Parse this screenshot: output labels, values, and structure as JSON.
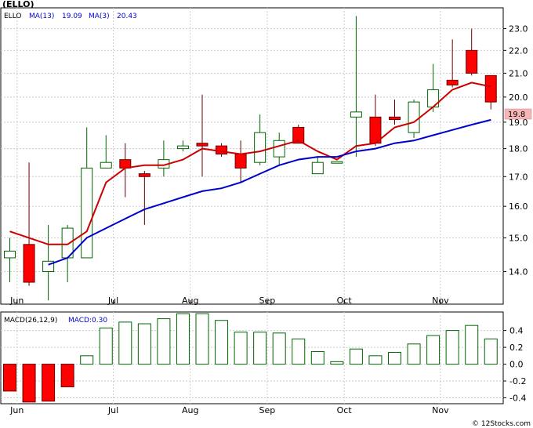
{
  "chart_data": [
    {
      "type": "candlestick",
      "title": "(ELLO)",
      "legend": [
        {
          "label": "ELLO",
          "color": "#000000"
        },
        {
          "label": "MA(13)",
          "value": "19.09",
          "color": "#0000cc"
        },
        {
          "label": "MA(3)",
          "value": "20.43",
          "color": "#0000cc"
        }
      ],
      "last_price_label": "19.8",
      "xtick_labels": [
        "Jun",
        "Jul",
        "Aug",
        "Sep",
        "Oct",
        "Nov"
      ],
      "ytick_labels": [
        "14.0",
        "15.0",
        "16.0",
        "17.0",
        "18.0",
        "19.0",
        "20.0",
        "21.0",
        "22.0",
        "23.0"
      ],
      "y_log_scale": true,
      "ylim": [
        13.1,
        24.0
      ],
      "grid": true,
      "bar_colors": {
        "up": "#006600",
        "down": "#ff0000"
      },
      "ma_colors": {
        "ma13": "#0000cc",
        "ma3": "#cc0000"
      },
      "weeks": [
        {
          "open": 14.4,
          "high": 15.0,
          "low": 13.7,
          "close": 14.6
        },
        {
          "open": 14.8,
          "high": 17.5,
          "low": 13.6,
          "close": 13.7
        },
        {
          "open": 14.0,
          "high": 15.4,
          "low": 13.2,
          "close": 14.3
        },
        {
          "open": 14.4,
          "high": 15.4,
          "low": 13.7,
          "close": 15.3
        },
        {
          "open": 14.4,
          "high": 18.8,
          "low": 14.4,
          "close": 17.3
        },
        {
          "open": 17.3,
          "high": 18.5,
          "low": 17.3,
          "close": 17.5
        },
        {
          "open": 17.6,
          "high": 18.2,
          "low": 16.3,
          "close": 17.3
        },
        {
          "open": 17.1,
          "high": 17.2,
          "low": 15.4,
          "close": 17.0
        },
        {
          "open": 17.3,
          "high": 18.3,
          "low": 17.0,
          "close": 17.6
        },
        {
          "open": 18.0,
          "high": 18.3,
          "low": 17.9,
          "close": 18.1
        },
        {
          "open": 18.2,
          "high": 20.1,
          "low": 17.0,
          "close": 18.1
        },
        {
          "open": 18.1,
          "high": 18.2,
          "low": 17.7,
          "close": 17.8
        },
        {
          "open": 17.8,
          "high": 18.3,
          "low": 16.8,
          "close": 17.3
        },
        {
          "open": 17.5,
          "high": 19.3,
          "low": 17.4,
          "close": 18.6
        },
        {
          "open": 17.7,
          "high": 18.6,
          "low": 17.4,
          "close": 18.3
        },
        {
          "open": 18.8,
          "high": 18.9,
          "low": 18.2,
          "close": 18.2
        },
        {
          "open": 17.1,
          "high": 17.7,
          "low": 17.1,
          "close": 17.5
        },
        {
          "open": 17.5,
          "high": 17.5,
          "low": 17.5,
          "close": 17.5
        },
        {
          "open": 19.2,
          "high": 23.6,
          "low": 17.7,
          "close": 19.4
        },
        {
          "open": 19.2,
          "high": 20.1,
          "low": 18.1,
          "close": 18.2
        },
        {
          "open": 19.2,
          "high": 19.9,
          "low": 18.9,
          "close": 19.1
        },
        {
          "open": 18.6,
          "high": 19.9,
          "low": 18.4,
          "close": 19.8
        },
        {
          "open": 19.6,
          "high": 21.4,
          "low": 19.4,
          "close": 20.3
        },
        {
          "open": 20.7,
          "high": 22.5,
          "low": 20.4,
          "close": 20.5
        },
        {
          "open": 22.0,
          "high": 23.0,
          "low": 20.9,
          "close": 21.0
        },
        {
          "open": 20.9,
          "high": 20.9,
          "low": 19.5,
          "close": 19.8
        }
      ],
      "ma13": [
        null,
        null,
        14.2,
        14.4,
        15.0,
        15.3,
        15.6,
        15.9,
        16.1,
        16.3,
        16.5,
        16.6,
        16.8,
        17.1,
        17.4,
        17.6,
        17.7,
        17.7,
        17.9,
        18.0,
        18.2,
        18.3,
        18.5,
        18.7,
        18.9,
        19.09
      ],
      "ma3": [
        15.2,
        15.0,
        14.8,
        14.8,
        15.2,
        16.8,
        17.3,
        17.4,
        17.4,
        17.6,
        18.0,
        17.9,
        17.8,
        17.9,
        18.1,
        18.3,
        17.9,
        17.6,
        18.1,
        18.2,
        18.8,
        19.0,
        19.6,
        20.3,
        20.6,
        20.43
      ]
    },
    {
      "type": "bar",
      "title": "MACD(26,12,9)",
      "legend": [
        {
          "label": "MACD(26,12,9)",
          "color": "#000000"
        },
        {
          "label": "MACD:0.30",
          "color": "#0000cc"
        }
      ],
      "xtick_labels": [
        "Jun",
        "Jul",
        "Aug",
        "Sep",
        "Oct",
        "Nov"
      ],
      "ytick_labels": [
        "0.4",
        "0.2",
        "0.0",
        "-0.2",
        "-0.4"
      ],
      "ylim": [
        -0.47,
        0.62
      ],
      "grid": true,
      "bar_colors": {
        "positive": "#006600",
        "negative": "#ff0000"
      },
      "values": [
        -0.32,
        -0.45,
        -0.44,
        -0.27,
        0.1,
        0.43,
        0.5,
        0.48,
        0.54,
        0.6,
        0.6,
        0.52,
        0.38,
        0.38,
        0.37,
        0.3,
        0.15,
        0.03,
        0.18,
        0.1,
        0.14,
        0.24,
        0.34,
        0.4,
        0.46,
        0.3
      ]
    }
  ]
}
